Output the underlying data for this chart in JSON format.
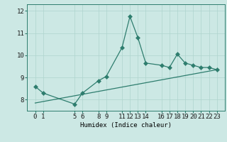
{
  "title": "",
  "xlabel": "Humidex (Indice chaleur)",
  "background_color": "#cce8e4",
  "line_color": "#2e7d6e",
  "grid_color": "#aed4ce",
  "line1_x": [
    0,
    1,
    5,
    6,
    8,
    9,
    11,
    12,
    13,
    14,
    16,
    17,
    18,
    19,
    20,
    21,
    22,
    23
  ],
  "line1_y": [
    8.6,
    8.3,
    7.8,
    8.3,
    8.85,
    9.05,
    10.35,
    11.75,
    10.8,
    9.65,
    9.55,
    9.45,
    10.05,
    9.65,
    9.55,
    9.45,
    9.45,
    9.35
  ],
  "line2_x": [
    0,
    23
  ],
  "line2_y": [
    7.85,
    9.35
  ],
  "ylim": [
    7.5,
    12.3
  ],
  "yticks": [
    8,
    9,
    10,
    11,
    12
  ],
  "xticks": [
    0,
    1,
    5,
    6,
    8,
    9,
    11,
    12,
    13,
    14,
    16,
    17,
    18,
    19,
    20,
    21,
    22,
    23
  ],
  "marker_size": 3.5,
  "line_width": 0.9,
  "font_size": 6.5
}
